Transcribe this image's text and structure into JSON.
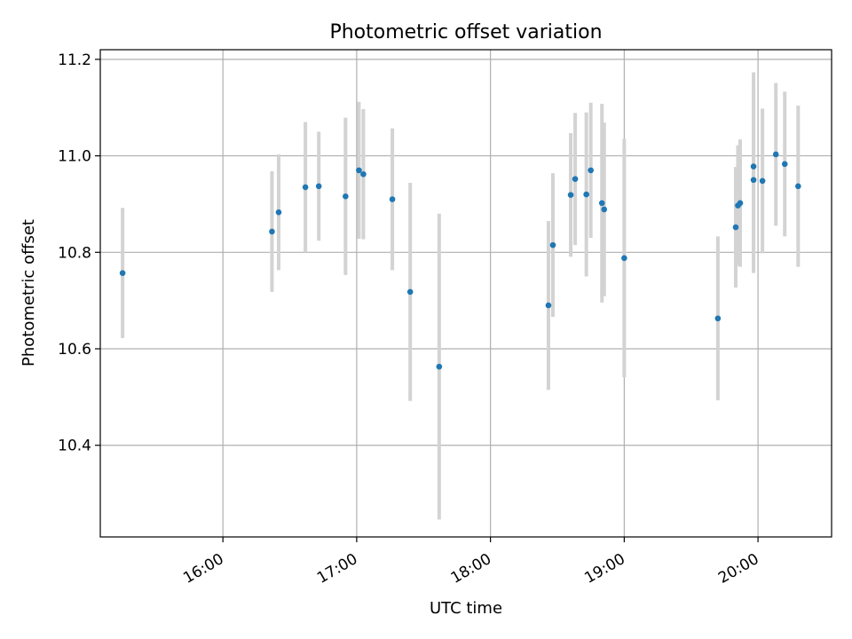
{
  "chart_data": {
    "type": "scatter",
    "title": "Photometric offset variation",
    "xlabel": "UTC time",
    "ylabel": "Photometric offset",
    "x_tick_labels": [
      "16:00",
      "17:00",
      "18:00",
      "19:00",
      "20:00"
    ],
    "y_tick_labels": [
      "10.4",
      "10.6",
      "10.8",
      "11.0",
      "11.2"
    ],
    "yticks": [
      10.4,
      10.6,
      10.8,
      11.0,
      11.2
    ],
    "xticks": [
      "16:00",
      "17:00",
      "18:00",
      "19:00",
      "20:00"
    ],
    "xlim": [
      "15:05",
      "20:33"
    ],
    "ylim": [
      10.21,
      11.22
    ],
    "grid": true,
    "point_color": "#1f77b4",
    "errorbar_color": "#d3d3d3",
    "series": [
      {
        "points": [
          {
            "x": "15:15",
            "y": 10.757,
            "err": 0.135
          },
          {
            "x": "16:22",
            "y": 10.843,
            "err": 0.125
          },
          {
            "x": "16:25",
            "y": 10.883,
            "err": 0.12
          },
          {
            "x": "16:37",
            "y": 10.935,
            "err": 0.135
          },
          {
            "x": "16:43",
            "y": 10.937,
            "err": 0.113
          },
          {
            "x": "16:55",
            "y": 10.916,
            "err": 0.163
          },
          {
            "x": "17:01",
            "y": 10.97,
            "err": 0.142
          },
          {
            "x": "17:03",
            "y": 10.962,
            "err": 0.135
          },
          {
            "x": "17:16",
            "y": 10.91,
            "err": 0.147
          },
          {
            "x": "17:24",
            "y": 10.718,
            "err": 0.226
          },
          {
            "x": "17:37",
            "y": 10.563,
            "err": 0.317
          },
          {
            "x": "18:26",
            "y": 10.69,
            "err": 0.175
          },
          {
            "x": "18:28",
            "y": 10.815,
            "err": 0.149
          },
          {
            "x": "18:36",
            "y": 10.919,
            "err": 0.128
          },
          {
            "x": "18:38",
            "y": 10.952,
            "err": 0.137
          },
          {
            "x": "18:43",
            "y": 10.92,
            "err": 0.17
          },
          {
            "x": "18:45",
            "y": 10.97,
            "err": 0.14
          },
          {
            "x": "18:50",
            "y": 10.902,
            "err": 0.206
          },
          {
            "x": "18:51",
            "y": 10.889,
            "err": 0.18
          },
          {
            "x": "19:00",
            "y": 10.788,
            "err": 0.247
          },
          {
            "x": "19:42",
            "y": 10.663,
            "err": 0.17
          },
          {
            "x": "19:50",
            "y": 10.852,
            "err": 0.125
          },
          {
            "x": "19:51",
            "y": 10.897,
            "err": 0.125
          },
          {
            "x": "19:52",
            "y": 10.902,
            "err": 0.132
          },
          {
            "x": "19:58",
            "y": 10.95,
            "err": 0.193
          },
          {
            "x": "19:58",
            "y": 10.978,
            "err": 0.195
          },
          {
            "x": "20:02",
            "y": 10.948,
            "err": 0.15
          },
          {
            "x": "20:08",
            "y": 11.003,
            "err": 0.148
          },
          {
            "x": "20:12",
            "y": 10.983,
            "err": 0.15
          },
          {
            "x": "20:18",
            "y": 10.937,
            "err": 0.167
          }
        ]
      }
    ]
  }
}
